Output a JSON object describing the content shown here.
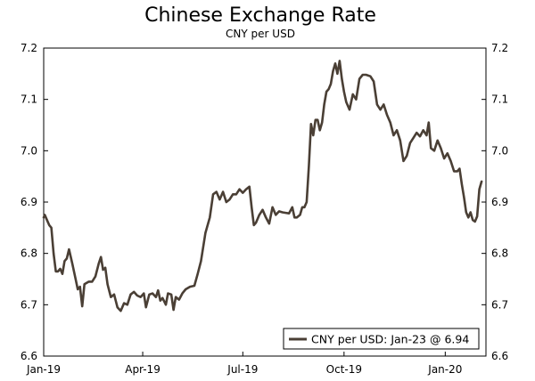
{
  "chart_data": {
    "type": "line",
    "title": "Chinese Exchange Rate",
    "subtitle": "CNY per USD",
    "xlabel": "",
    "ylabel": "",
    "ylim": [
      6.6,
      7.2
    ],
    "y_ticks": [
      "6.6",
      "6.7",
      "6.8",
      "6.9",
      "7.0",
      "7.1",
      "7.2"
    ],
    "x_ticks": [
      {
        "label": "Jan-19",
        "date": "2019-01-01"
      },
      {
        "label": "Apr-19",
        "date": "2019-04-01"
      },
      {
        "label": "Jul-19",
        "date": "2019-07-01"
      },
      {
        "label": "Oct-19",
        "date": "2019-10-01"
      },
      {
        "label": "Jan-20",
        "date": "2020-01-01"
      }
    ],
    "x_range": [
      "2019-01-01",
      "2020-02-07"
    ],
    "grid": false,
    "right_axis": true,
    "legend_position": "bottom-right",
    "line_color": "#4a3f35",
    "series": [
      {
        "name": "CNY per USD: Jan-23 @ 6.94",
        "points": [
          [
            "2019-01-01",
            6.87
          ],
          [
            "2019-01-02",
            6.875
          ],
          [
            "2019-01-04",
            6.865
          ],
          [
            "2019-01-06",
            6.855
          ],
          [
            "2019-01-08",
            6.85
          ],
          [
            "2019-01-10",
            6.8
          ],
          [
            "2019-01-12",
            6.765
          ],
          [
            "2019-01-14",
            6.765
          ],
          [
            "2019-01-16",
            6.77
          ],
          [
            "2019-01-18",
            6.76
          ],
          [
            "2019-01-20",
            6.785
          ],
          [
            "2019-01-22",
            6.79
          ],
          [
            "2019-01-24",
            6.808
          ],
          [
            "2019-01-27",
            6.78
          ],
          [
            "2019-01-30",
            6.75
          ],
          [
            "2019-02-01",
            6.73
          ],
          [
            "2019-02-03",
            6.735
          ],
          [
            "2019-02-05",
            6.697
          ],
          [
            "2019-02-07",
            6.74
          ],
          [
            "2019-02-11",
            6.745
          ],
          [
            "2019-02-14",
            6.745
          ],
          [
            "2019-02-17",
            6.755
          ],
          [
            "2019-02-20",
            6.78
          ],
          [
            "2019-02-22",
            6.793
          ],
          [
            "2019-02-24",
            6.768
          ],
          [
            "2019-02-26",
            6.772
          ],
          [
            "2019-02-28",
            6.74
          ],
          [
            "2019-03-03",
            6.715
          ],
          [
            "2019-03-06",
            6.72
          ],
          [
            "2019-03-09",
            6.695
          ],
          [
            "2019-03-12",
            6.688
          ],
          [
            "2019-03-15",
            6.703
          ],
          [
            "2019-03-18",
            6.7
          ],
          [
            "2019-03-21",
            6.72
          ],
          [
            "2019-03-24",
            6.725
          ],
          [
            "2019-03-27",
            6.718
          ],
          [
            "2019-03-30",
            6.715
          ],
          [
            "2019-04-02",
            6.722
          ],
          [
            "2019-04-04",
            6.695
          ],
          [
            "2019-04-07",
            6.72
          ],
          [
            "2019-04-10",
            6.722
          ],
          [
            "2019-04-13",
            6.715
          ],
          [
            "2019-04-15",
            6.728
          ],
          [
            "2019-04-17",
            6.708
          ],
          [
            "2019-04-19",
            6.713
          ],
          [
            "2019-04-22",
            6.7
          ],
          [
            "2019-04-24",
            6.722
          ],
          [
            "2019-04-27",
            6.72
          ],
          [
            "2019-04-29",
            6.69
          ],
          [
            "2019-05-01",
            6.715
          ],
          [
            "2019-05-04",
            6.71
          ],
          [
            "2019-05-07",
            6.722
          ],
          [
            "2019-05-10",
            6.73
          ],
          [
            "2019-05-14",
            6.735
          ],
          [
            "2019-05-18",
            6.737
          ],
          [
            "2019-05-21",
            6.76
          ],
          [
            "2019-05-24",
            6.785
          ],
          [
            "2019-05-28",
            6.84
          ],
          [
            "2019-06-01",
            6.87
          ],
          [
            "2019-06-04",
            6.915
          ],
          [
            "2019-06-07",
            6.92
          ],
          [
            "2019-06-10",
            6.905
          ],
          [
            "2019-06-13",
            6.92
          ],
          [
            "2019-06-16",
            6.9
          ],
          [
            "2019-06-19",
            6.905
          ],
          [
            "2019-06-22",
            6.915
          ],
          [
            "2019-06-25",
            6.915
          ],
          [
            "2019-06-28",
            6.925
          ],
          [
            "2019-07-01",
            6.918
          ],
          [
            "2019-07-04",
            6.925
          ],
          [
            "2019-07-07",
            6.93
          ],
          [
            "2019-07-09",
            6.89
          ],
          [
            "2019-07-11",
            6.855
          ],
          [
            "2019-07-13",
            6.86
          ],
          [
            "2019-07-16",
            6.875
          ],
          [
            "2019-07-19",
            6.885
          ],
          [
            "2019-07-22",
            6.87
          ],
          [
            "2019-07-25",
            6.858
          ],
          [
            "2019-07-28",
            6.89
          ],
          [
            "2019-07-31",
            6.875
          ],
          [
            "2019-08-03",
            6.882
          ],
          [
            "2019-08-06",
            6.88
          ],
          [
            "2019-08-09",
            6.879
          ],
          [
            "2019-08-12",
            6.878
          ],
          [
            "2019-08-15",
            6.89
          ],
          [
            "2019-08-17",
            6.87
          ],
          [
            "2019-08-19",
            6.87
          ],
          [
            "2019-08-22",
            6.875
          ],
          [
            "2019-08-24",
            6.89
          ],
          [
            "2019-08-26",
            6.89
          ],
          [
            "2019-08-28",
            6.9
          ],
          [
            "2019-08-30",
            6.97
          ],
          [
            "2019-09-01",
            7.052
          ],
          [
            "2019-09-03",
            7.03
          ],
          [
            "2019-09-05",
            7.06
          ],
          [
            "2019-09-07",
            7.06
          ],
          [
            "2019-09-09",
            7.04
          ],
          [
            "2019-09-11",
            7.055
          ],
          [
            "2019-09-13",
            7.09
          ],
          [
            "2019-09-15",
            7.115
          ],
          [
            "2019-09-17",
            7.12
          ],
          [
            "2019-09-19",
            7.13
          ],
          [
            "2019-09-21",
            7.155
          ],
          [
            "2019-09-23",
            7.17
          ],
          [
            "2019-09-25",
            7.15
          ],
          [
            "2019-09-27",
            7.175
          ],
          [
            "2019-09-29",
            7.14
          ],
          [
            "2019-10-01",
            7.115
          ],
          [
            "2019-10-03",
            7.095
          ],
          [
            "2019-10-06",
            7.08
          ],
          [
            "2019-10-09",
            7.11
          ],
          [
            "2019-10-12",
            7.1
          ],
          [
            "2019-10-15",
            7.14
          ],
          [
            "2019-10-18",
            7.148
          ],
          [
            "2019-10-21",
            7.148
          ],
          [
            "2019-10-25",
            7.145
          ],
          [
            "2019-10-28",
            7.135
          ],
          [
            "2019-10-31",
            7.09
          ],
          [
            "2019-11-03",
            7.08
          ],
          [
            "2019-11-06",
            7.09
          ],
          [
            "2019-11-09",
            7.07
          ],
          [
            "2019-11-12",
            7.055
          ],
          [
            "2019-11-15",
            7.03
          ],
          [
            "2019-11-18",
            7.04
          ],
          [
            "2019-11-21",
            7.02
          ],
          [
            "2019-11-24",
            6.98
          ],
          [
            "2019-11-27",
            6.99
          ],
          [
            "2019-11-30",
            7.015
          ],
          [
            "2019-12-03",
            7.025
          ],
          [
            "2019-12-06",
            7.035
          ],
          [
            "2019-12-09",
            7.028
          ],
          [
            "2019-12-12",
            7.04
          ],
          [
            "2019-12-15",
            7.03
          ],
          [
            "2019-12-17",
            7.055
          ],
          [
            "2019-12-19",
            7.005
          ],
          [
            "2019-12-22",
            7.0
          ],
          [
            "2019-12-25",
            7.02
          ],
          [
            "2019-12-28",
            7.005
          ],
          [
            "2019-12-31",
            6.985
          ],
          [
            "2020-01-03",
            6.995
          ],
          [
            "2020-01-06",
            6.98
          ],
          [
            "2020-01-09",
            6.96
          ],
          [
            "2020-01-12",
            6.96
          ],
          [
            "2020-01-14",
            6.965
          ],
          [
            "2020-01-16",
            6.935
          ],
          [
            "2020-01-18",
            6.91
          ],
          [
            "2020-01-20",
            6.88
          ],
          [
            "2020-01-22",
            6.87
          ],
          [
            "2020-01-24",
            6.88
          ],
          [
            "2020-01-26",
            6.865
          ],
          [
            "2020-01-28",
            6.862
          ],
          [
            "2020-01-30",
            6.872
          ],
          [
            "2020-02-01",
            6.925
          ],
          [
            "2020-02-03",
            6.94
          ]
        ]
      }
    ]
  }
}
